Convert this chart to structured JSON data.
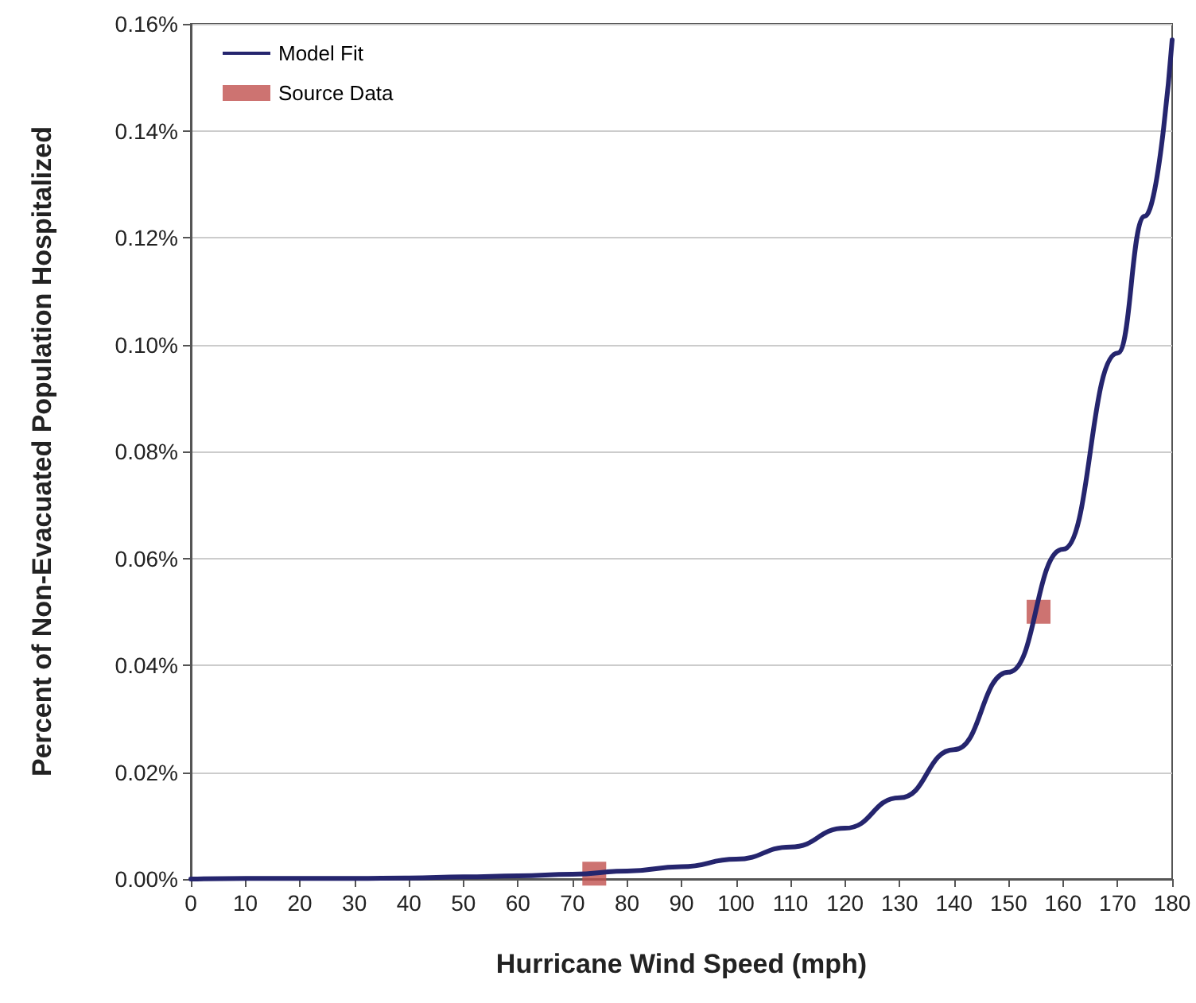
{
  "chart_data": {
    "type": "line",
    "xlabel": "Hurricane Wind Speed (mph)",
    "ylabel": "Percent of Non-Evacuated Population Hospitalized",
    "series": [
      {
        "name": "Model Fit",
        "color": "#25256e",
        "marker": "none",
        "line_style": "solid",
        "x": [
          0,
          10,
          20,
          30,
          40,
          50,
          60,
          70,
          80,
          90,
          100,
          110,
          120,
          130,
          140,
          150,
          160,
          170,
          175,
          180
        ],
        "values": [
          0.0,
          0.0001,
          0.0001,
          0.0001,
          0.0002,
          0.0004,
          0.0006,
          0.0009,
          0.0015,
          0.0023,
          0.0037,
          0.006,
          0.0095,
          0.0152,
          0.0242,
          0.0387,
          0.0617,
          0.0984,
          0.124,
          0.157
        ]
      },
      {
        "name": "Source Data",
        "type": "scatter",
        "color": "#c0504d",
        "marker": "square",
        "x": [
          74,
          155.5
        ],
        "values": [
          0.001,
          0.05
        ]
      }
    ],
    "xlim": [
      0,
      180
    ],
    "xticks": [
      0,
      10,
      20,
      30,
      40,
      50,
      60,
      70,
      80,
      90,
      100,
      110,
      120,
      130,
      140,
      150,
      160,
      170,
      180
    ],
    "ylim": [
      0,
      0.16
    ],
    "yticks": [
      {
        "value": 0,
        "label": "0.00%"
      },
      {
        "value": 0.02,
        "label": "0.02%"
      },
      {
        "value": 0.04,
        "label": "0.04%"
      },
      {
        "value": 0.06,
        "label": "0.06%"
      },
      {
        "value": 0.08,
        "label": "0.08%"
      },
      {
        "value": 0.1,
        "label": "0.10%"
      },
      {
        "value": 0.12,
        "label": "0.12%"
      },
      {
        "value": 0.14,
        "label": "0.14%"
      },
      {
        "value": 0.16,
        "label": "0.16%"
      }
    ],
    "grid": "y",
    "legend": "top left"
  }
}
